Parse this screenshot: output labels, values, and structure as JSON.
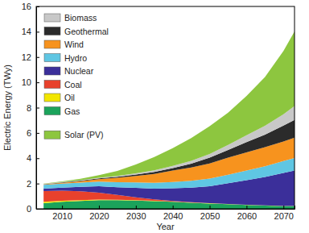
{
  "chart_data": {
    "type": "area",
    "stacked": true,
    "legend": "upper left",
    "x_label": "Year",
    "y_label": "Electric Energy (TWy)",
    "x": [
      2005,
      2010,
      2015,
      2020,
      2025,
      2030,
      2035,
      2040,
      2045,
      2050,
      2055,
      2060,
      2065,
      2070,
      2073
    ],
    "xlim": [
      2003,
      2073
    ],
    "xticks": [
      2010,
      2020,
      2030,
      2040,
      2050,
      2060,
      2070
    ],
    "ylim": [
      0,
      16
    ],
    "yticks": [
      0,
      2,
      4,
      6,
      8,
      10,
      12,
      14,
      16
    ],
    "series": [
      {
        "name": "Gas",
        "color": "#1ba35b",
        "values": [
          0.45,
          0.55,
          0.62,
          0.68,
          0.68,
          0.66,
          0.6,
          0.55,
          0.48,
          0.42,
          0.36,
          0.3,
          0.25,
          0.21,
          0.2
        ]
      },
      {
        "name": "Oil",
        "color": "#f2e600",
        "values": [
          0.1,
          0.08,
          0.06,
          0.05,
          0.04,
          0.03,
          0.03,
          0.02,
          0.02,
          0.02,
          0.02,
          0.02,
          0.02,
          0.02,
          0.02
        ]
      },
      {
        "name": "Coal",
        "color": "#e8412c",
        "values": [
          0.85,
          0.8,
          0.7,
          0.55,
          0.38,
          0.22,
          0.12,
          0.05,
          0.02,
          0,
          0,
          0,
          0,
          0,
          0
        ]
      },
      {
        "name": "Nuclear",
        "color": "#3b2f9a",
        "values": [
          0.2,
          0.25,
          0.35,
          0.5,
          0.6,
          0.75,
          0.85,
          1.0,
          1.15,
          1.35,
          1.65,
          1.95,
          2.25,
          2.6,
          2.8
        ]
      },
      {
        "name": "Hydro",
        "color": "#5fc6e3",
        "values": [
          0.3,
          0.32,
          0.34,
          0.37,
          0.4,
          0.43,
          0.46,
          0.5,
          0.55,
          0.6,
          0.67,
          0.75,
          0.85,
          0.95,
          1.0
        ]
      },
      {
        "name": "Wind",
        "color": "#f7931e",
        "values": [
          0.03,
          0.06,
          0.12,
          0.2,
          0.35,
          0.5,
          0.7,
          0.9,
          1.05,
          1.2,
          1.35,
          1.45,
          1.5,
          1.55,
          1.6
        ]
      },
      {
        "name": "Geothermal",
        "color": "#2b2b2b",
        "values": [
          0.02,
          0.03,
          0.04,
          0.06,
          0.08,
          0.12,
          0.16,
          0.2,
          0.3,
          0.45,
          0.6,
          0.8,
          1.0,
          1.25,
          1.4
        ]
      },
      {
        "name": "Biomass",
        "color": "#c8c8c8",
        "values": [
          0.02,
          0.03,
          0.04,
          0.05,
          0.07,
          0.1,
          0.13,
          0.17,
          0.22,
          0.3,
          0.4,
          0.55,
          0.7,
          0.9,
          1.1
        ]
      },
      {
        "name": "Solar (PV)",
        "color": "#8dc63f",
        "values": [
          0.03,
          0.05,
          0.1,
          0.2,
          0.4,
          0.7,
          1.05,
          1.4,
          1.8,
          2.2,
          2.55,
          3.1,
          3.85,
          5.0,
          5.9
        ]
      }
    ]
  }
}
